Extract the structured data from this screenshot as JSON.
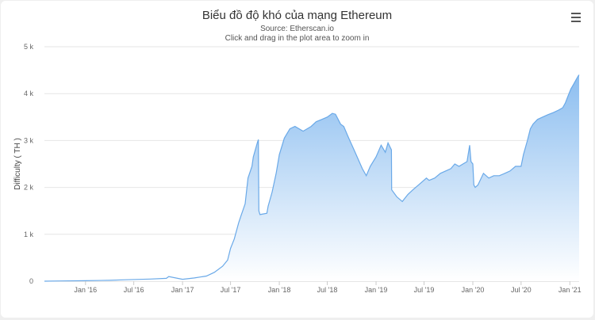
{
  "header": {
    "title": "Biểu đồ độ khó của mạng Ethereum",
    "subtitle": "Source: Etherscan.io",
    "hint": "Click and drag in the plot area to zoom in"
  },
  "menu": {
    "icon": "hamburger-menu-icon"
  },
  "colors": {
    "fill_top": "#8cbef0",
    "fill_bottom": "#ffffff",
    "line": "#6aa9e8",
    "grid": "#e6e6e6"
  },
  "chart_data": {
    "type": "area",
    "title": "Biểu đồ độ khó của mạng Ethereum",
    "subtitle": "Source: Etherscan.io",
    "ylabel": "Difficulty ( TH )",
    "xlabel": "",
    "ylim": [
      0,
      5000
    ],
    "y_ticks": [
      0,
      1000,
      2000,
      3000,
      4000,
      5000
    ],
    "y_tick_labels": [
      "0",
      "1 k",
      "2 k",
      "3 k",
      "4 k",
      "5 k"
    ],
    "xlim": [
      "2015-07-30",
      "2021-02-05"
    ],
    "x_ticks": [
      "2016-01-01",
      "2016-07-01",
      "2017-01-01",
      "2017-07-01",
      "2018-01-01",
      "2018-07-01",
      "2019-01-01",
      "2019-07-01",
      "2020-01-01",
      "2020-07-01",
      "2021-01-01"
    ],
    "x_tick_labels": [
      "Jan '16",
      "Jul '16",
      "Jan '17",
      "Jul '17",
      "Jan '18",
      "Jul '18",
      "Jan '19",
      "Jul '19",
      "Jan '20",
      "Jul '20",
      "Jan '21"
    ],
    "grid": true,
    "legend": "none",
    "series": [
      {
        "x": [
          "2015-07-30",
          "2015-10-01",
          "2016-01-01",
          "2016-04-01",
          "2016-06-01",
          "2016-09-01",
          "2016-11-01",
          "2016-11-10",
          "2017-01-01",
          "2017-02-15",
          "2017-04-01",
          "2017-05-01",
          "2017-06-01",
          "2017-06-20",
          "2017-07-01",
          "2017-07-15",
          "2017-08-01",
          "2017-08-10",
          "2017-08-25",
          "2017-09-05",
          "2017-09-20",
          "2017-09-25",
          "2017-10-10",
          "2017-10-14",
          "2017-10-16",
          "2017-10-20",
          "2017-11-15",
          "2017-11-20",
          "2017-12-05",
          "2017-12-20",
          "2018-01-01",
          "2018-01-20",
          "2018-02-10",
          "2018-03-01",
          "2018-04-01",
          "2018-05-01",
          "2018-05-20",
          "2018-06-10",
          "2018-07-01",
          "2018-07-20",
          "2018-08-01",
          "2018-08-20",
          "2018-09-01",
          "2018-09-20",
          "2018-10-10",
          "2018-11-10",
          "2018-11-25",
          "2018-12-10",
          "2019-01-01",
          "2019-01-20",
          "2019-02-05",
          "2019-02-15",
          "2019-02-28",
          "2019-03-01",
          "2019-03-20",
          "2019-04-10",
          "2019-05-01",
          "2019-05-20",
          "2019-06-10",
          "2019-06-20",
          "2019-07-10",
          "2019-07-20",
          "2019-08-10",
          "2019-09-01",
          "2019-09-20",
          "2019-10-10",
          "2019-10-25",
          "2019-11-10",
          "2019-11-25",
          "2019-12-10",
          "2019-12-20",
          "2019-12-25",
          "2020-01-01",
          "2020-01-05",
          "2020-01-10",
          "2020-01-20",
          "2020-02-10",
          "2020-03-01",
          "2020-03-20",
          "2020-04-10",
          "2020-05-01",
          "2020-05-20",
          "2020-06-10",
          "2020-07-01",
          "2020-07-10",
          "2020-07-25",
          "2020-08-05",
          "2020-08-15",
          "2020-09-01",
          "2020-09-20",
          "2020-10-10",
          "2020-11-01",
          "2020-11-20",
          "2020-12-05",
          "2020-12-15",
          "2020-12-25",
          "2021-01-05",
          "2021-01-15",
          "2021-01-25",
          "2021-02-02",
          "2021-02-05"
        ],
        "y": [
          0,
          5,
          10,
          18,
          30,
          45,
          60,
          100,
          40,
          70,
          110,
          190,
          320,
          450,
          700,
          900,
          1250,
          1400,
          1650,
          2200,
          2450,
          2650,
          2950,
          3020,
          1500,
          1420,
          1450,
          1600,
          1900,
          2300,
          2700,
          3050,
          3250,
          3300,
          3200,
          3300,
          3400,
          3450,
          3500,
          3580,
          3560,
          3350,
          3300,
          3050,
          2800,
          2400,
          2250,
          2450,
          2650,
          2900,
          2750,
          2950,
          2800,
          1950,
          1800,
          1700,
          1850,
          1950,
          2050,
          2100,
          2200,
          2150,
          2200,
          2300,
          2350,
          2400,
          2500,
          2450,
          2500,
          2550,
          2900,
          2550,
          2500,
          2050,
          2000,
          2050,
          2300,
          2200,
          2250,
          2250,
          2300,
          2350,
          2450,
          2450,
          2700,
          3000,
          3250,
          3350,
          3450,
          3500,
          3550,
          3600,
          3650,
          3700,
          3800,
          3950,
          4100,
          4200,
          4300,
          4380,
          4400
        ]
      }
    ]
  }
}
